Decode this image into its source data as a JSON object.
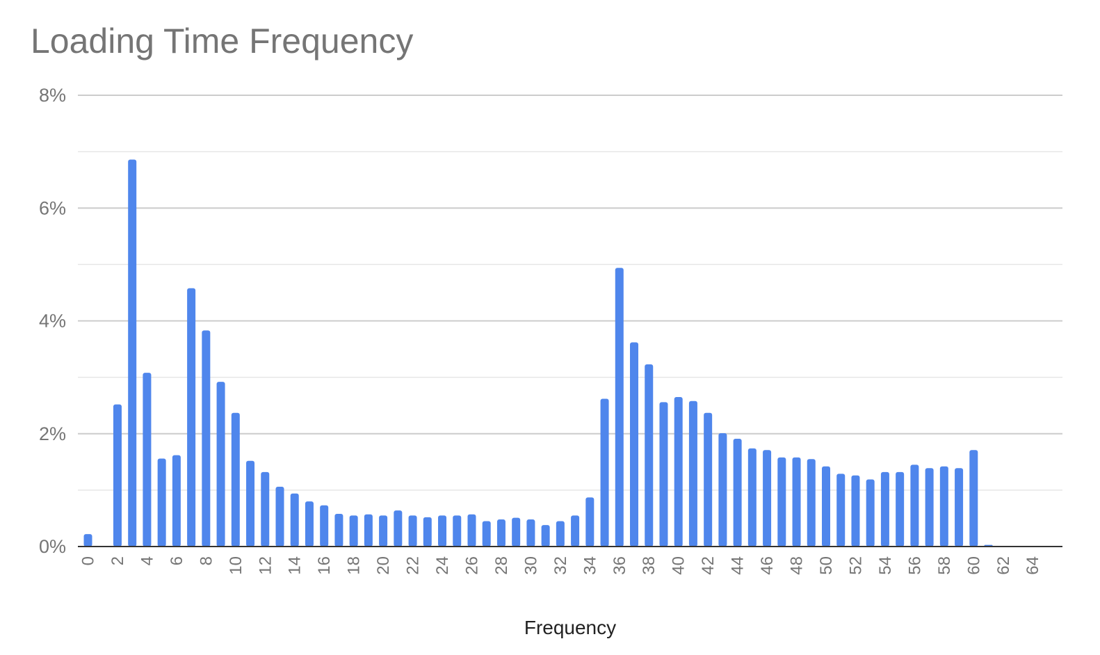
{
  "chart_data": {
    "type": "bar",
    "title": "Loading Time Frequency",
    "xlabel": "Frequency",
    "ylabel": "",
    "ylim": [
      0,
      8
    ],
    "y_ticks": [
      "0%",
      "2%",
      "4%",
      "6%",
      "8%"
    ],
    "y_tick_values": [
      0,
      2,
      4,
      6,
      8
    ],
    "minor_gridlines": [
      1,
      3,
      5,
      7
    ],
    "x_ticks": [
      "0",
      "2",
      "4",
      "6",
      "8",
      "10",
      "12",
      "14",
      "16",
      "18",
      "20",
      "22",
      "24",
      "26",
      "28",
      "30",
      "32",
      "34",
      "36",
      "38",
      "40",
      "42",
      "44",
      "46",
      "48",
      "50",
      "52",
      "54",
      "56",
      "58",
      "60",
      "62",
      "64"
    ],
    "categories": [
      0,
      1,
      2,
      3,
      4,
      5,
      6,
      7,
      8,
      9,
      10,
      11,
      12,
      13,
      14,
      15,
      16,
      17,
      18,
      19,
      20,
      21,
      22,
      23,
      24,
      25,
      26,
      27,
      28,
      29,
      30,
      31,
      32,
      33,
      34,
      35,
      36,
      37,
      38,
      39,
      40,
      41,
      42,
      43,
      44,
      45,
      46,
      47,
      48,
      49,
      50,
      51,
      52,
      53,
      54,
      55,
      56,
      57,
      58,
      59,
      60,
      61,
      62,
      63,
      64,
      65
    ],
    "values": [
      0.22,
      0,
      2.52,
      6.86,
      3.08,
      1.56,
      1.62,
      4.58,
      3.83,
      2.92,
      2.37,
      1.52,
      1.32,
      1.06,
      0.94,
      0.8,
      0.73,
      0.58,
      0.55,
      0.57,
      0.55,
      0.64,
      0.55,
      0.52,
      0.55,
      0.55,
      0.57,
      0.45,
      0.48,
      0.51,
      0.48,
      0.38,
      0.45,
      0.55,
      0.87,
      2.62,
      4.94,
      3.62,
      3.23,
      2.56,
      2.65,
      2.58,
      2.37,
      2.01,
      1.91,
      1.74,
      1.71,
      1.58,
      1.58,
      1.55,
      1.42,
      1.29,
      1.26,
      1.19,
      1.32,
      1.32,
      1.45,
      1.39,
      1.42,
      1.39,
      1.71,
      0.03,
      0,
      0,
      0,
      0
    ],
    "unit": "%",
    "grid": true,
    "legend": "none",
    "bar_color": "#4f86ec",
    "grid_color": "#cccccc",
    "minor_grid_color": "#e6e6e6",
    "axis_color": "#333333"
  }
}
